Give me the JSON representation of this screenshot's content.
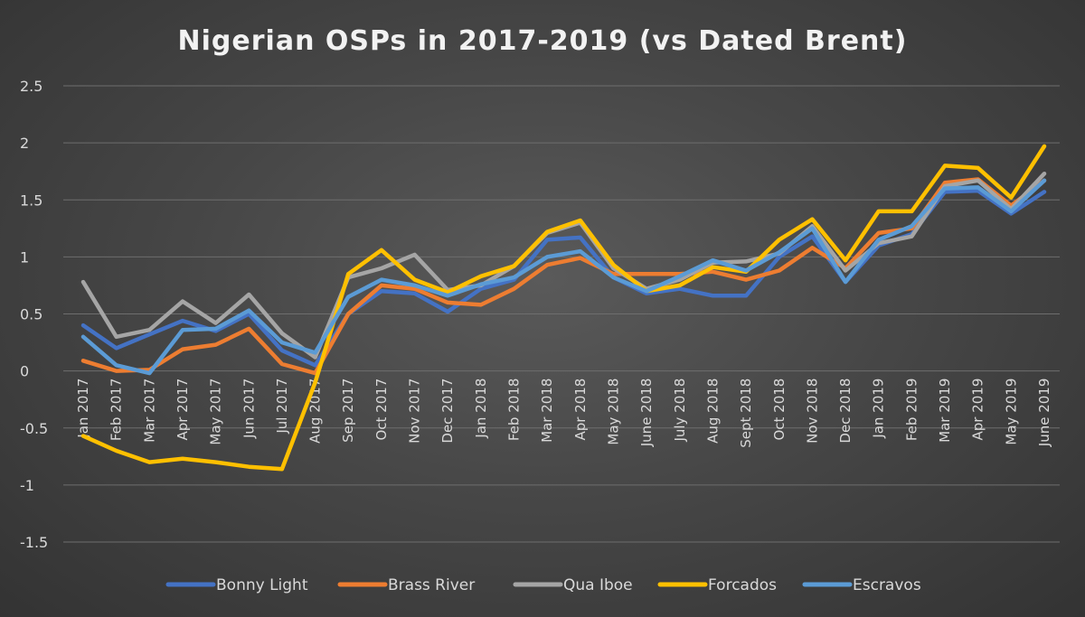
{
  "chart_data": {
    "type": "line",
    "title": "Nigerian OSPs in 2017-2019 (vs Dated Brent)",
    "xlabel": "",
    "ylabel": "",
    "ylim": [
      -1.5,
      2.5
    ],
    "yticks": [
      "2.5",
      "2",
      "1.5",
      "1",
      "0.5",
      "0",
      "-0.5",
      "-1",
      "-1.5"
    ],
    "ytick_values": [
      2.5,
      2,
      1.5,
      1,
      0.5,
      0,
      -0.5,
      -1,
      -1.5
    ],
    "grid": true,
    "legend_position": "bottom",
    "categories": [
      "Jan 2017",
      "Feb 2017",
      "Mar 2017",
      "Apr 2017",
      "May 2017",
      "Jun 2017",
      "Jul 2017",
      "Aug 2017",
      "Sep 2017",
      "Oct 2017",
      "Nov 2017",
      "Dec 2017",
      "Jan 2018",
      "Feb 2018",
      "Mar 2018",
      "Apr 2018",
      "May 2018",
      "June 2018",
      "July 2018",
      "Aug 2018",
      "Sept 2018",
      "Oct 2018",
      "Nov 2018",
      "Dec 2018",
      "Jan 2019",
      "Feb 2019",
      "Mar 2019",
      "Apr 2019",
      "May 2019",
      "June 2019"
    ],
    "series": [
      {
        "name": "Bonny Light",
        "color": "#4472c4",
        "values": [
          0.4,
          0.2,
          0.32,
          0.44,
          0.35,
          0.5,
          0.18,
          0.05,
          0.5,
          0.7,
          0.68,
          0.52,
          0.72,
          0.8,
          1.15,
          1.17,
          0.82,
          0.68,
          0.72,
          0.66,
          0.66,
          1.0,
          1.18,
          0.78,
          1.1,
          1.2,
          1.57,
          1.58,
          1.38,
          1.57
        ]
      },
      {
        "name": "Brass River",
        "color": "#ed7d31",
        "values": [
          0.09,
          0.0,
          0.01,
          0.19,
          0.23,
          0.37,
          0.06,
          -0.02,
          0.5,
          0.75,
          0.72,
          0.6,
          0.58,
          0.72,
          0.93,
          0.99,
          0.85,
          0.85,
          0.85,
          0.87,
          0.8,
          0.88,
          1.08,
          0.9,
          1.21,
          1.25,
          1.65,
          1.68,
          1.45,
          1.67
        ]
      },
      {
        "name": "Qua Iboe",
        "color": "#a5a5a5",
        "values": [
          0.78,
          0.3,
          0.36,
          0.61,
          0.42,
          0.67,
          0.33,
          0.12,
          0.82,
          0.9,
          1.02,
          0.71,
          0.75,
          0.92,
          1.21,
          1.3,
          0.9,
          0.72,
          0.8,
          0.95,
          0.96,
          1.03,
          1.27,
          0.88,
          1.12,
          1.18,
          1.62,
          1.67,
          1.42,
          1.73
        ]
      },
      {
        "name": "Forcados",
        "color": "#ffc000",
        "values": [
          -0.57,
          -0.7,
          -0.8,
          -0.77,
          -0.8,
          -0.84,
          -0.86,
          -0.1,
          0.85,
          1.06,
          0.8,
          0.69,
          0.83,
          0.92,
          1.22,
          1.32,
          0.93,
          0.7,
          0.75,
          0.91,
          0.87,
          1.15,
          1.33,
          0.97,
          1.4,
          1.4,
          1.8,
          1.78,
          1.52,
          1.97
        ]
      },
      {
        "name": "Escravos",
        "color": "#5b9bd5",
        "values": [
          0.3,
          0.05,
          -0.02,
          0.36,
          0.37,
          0.53,
          0.25,
          0.16,
          0.65,
          0.8,
          0.75,
          0.66,
          0.76,
          0.82,
          1.0,
          1.05,
          0.82,
          0.7,
          0.83,
          0.97,
          0.88,
          1.04,
          1.25,
          0.78,
          1.15,
          1.27,
          1.6,
          1.61,
          1.4,
          1.67
        ]
      }
    ]
  }
}
